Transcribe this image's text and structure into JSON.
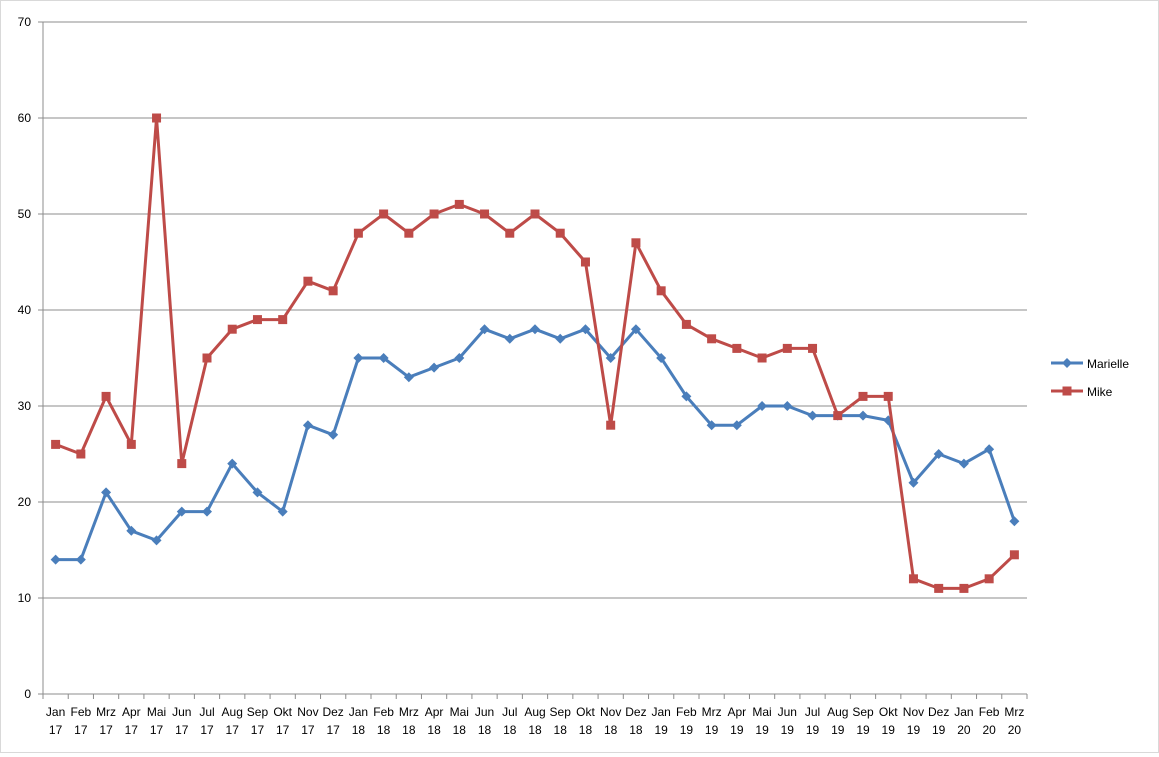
{
  "chart_data": {
    "type": "line",
    "title": "",
    "xlabel": "",
    "ylabel": "",
    "ylim": [
      0,
      70
    ],
    "yticks": [
      0,
      10,
      20,
      30,
      40,
      50,
      60,
      70
    ],
    "grid": true,
    "legend_position": "right",
    "categories": [
      [
        "Jan",
        "17"
      ],
      [
        "Feb",
        "17"
      ],
      [
        "Mrz",
        "17"
      ],
      [
        "Apr",
        "17"
      ],
      [
        "Mai",
        "17"
      ],
      [
        "Jun",
        "17"
      ],
      [
        "Jul",
        "17"
      ],
      [
        "Aug",
        "17"
      ],
      [
        "Sep",
        "17"
      ],
      [
        "Okt",
        "17"
      ],
      [
        "Nov",
        "17"
      ],
      [
        "Dez",
        "17"
      ],
      [
        "Jan",
        "18"
      ],
      [
        "Feb",
        "18"
      ],
      [
        "Mrz",
        "18"
      ],
      [
        "Apr",
        "18"
      ],
      [
        "Mai",
        "18"
      ],
      [
        "Jun",
        "18"
      ],
      [
        "Jul",
        "18"
      ],
      [
        "Aug",
        "18"
      ],
      [
        "Sep",
        "18"
      ],
      [
        "Okt",
        "18"
      ],
      [
        "Nov",
        "18"
      ],
      [
        "Dez",
        "18"
      ],
      [
        "Jan",
        "19"
      ],
      [
        "Feb",
        "19"
      ],
      [
        "Mrz",
        "19"
      ],
      [
        "Apr",
        "19"
      ],
      [
        "Mai",
        "19"
      ],
      [
        "Jun",
        "19"
      ],
      [
        "Jul",
        "19"
      ],
      [
        "Aug",
        "19"
      ],
      [
        "Sep",
        "19"
      ],
      [
        "Okt",
        "19"
      ],
      [
        "Nov",
        "19"
      ],
      [
        "Dez",
        "19"
      ],
      [
        "Jan",
        "20"
      ],
      [
        "Feb",
        "20"
      ],
      [
        "Mrz",
        "20"
      ]
    ],
    "series": [
      {
        "name": "Marielle",
        "color": "#4a7ebb",
        "marker": "diamond",
        "values": [
          14,
          14,
          21,
          17,
          16,
          19,
          19,
          24,
          21,
          19,
          28,
          27,
          35,
          35,
          33,
          34,
          35,
          38,
          37,
          38,
          37,
          38,
          35,
          38,
          35,
          31,
          28,
          28,
          30,
          30,
          29,
          29,
          29,
          28.5,
          22,
          25,
          24,
          25.5,
          18
        ]
      },
      {
        "name": "Mike",
        "color": "#be4b48",
        "marker": "square",
        "values": [
          26,
          25,
          31,
          26,
          60,
          24,
          35,
          38,
          39,
          39,
          43,
          42,
          48,
          50,
          48,
          50,
          51,
          50,
          48,
          50,
          48,
          45,
          28,
          47,
          42,
          38.5,
          37,
          36,
          35,
          36,
          36,
          29,
          31,
          31,
          12,
          11,
          11,
          12,
          14.5
        ]
      }
    ]
  }
}
